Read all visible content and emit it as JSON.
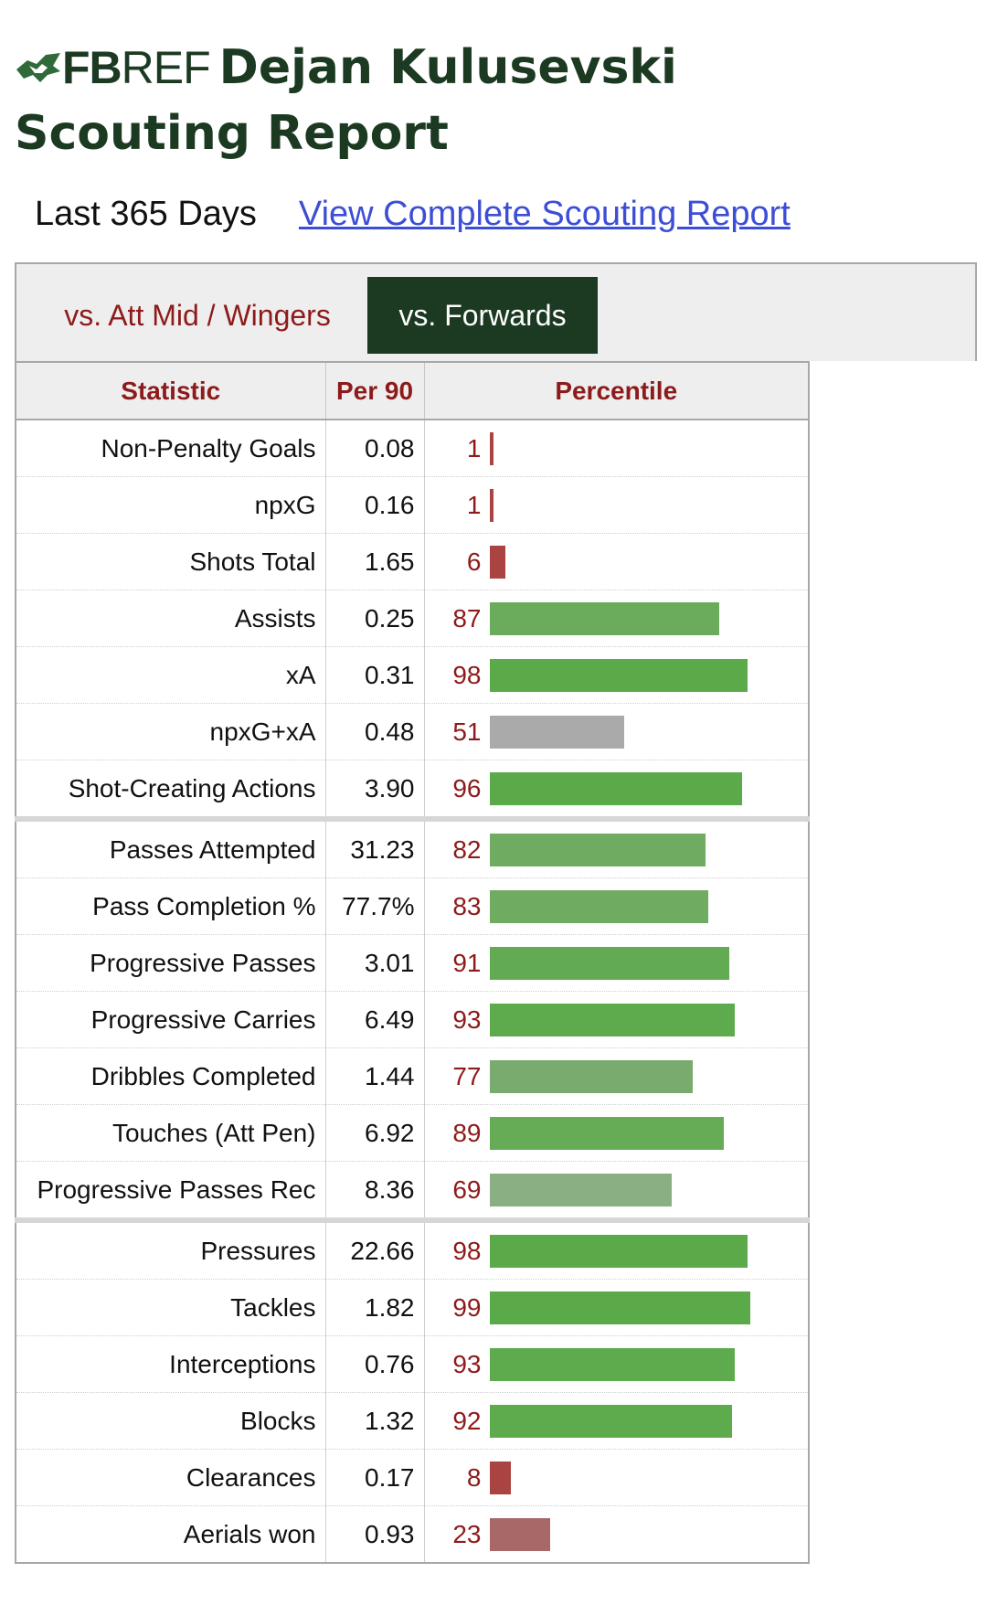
{
  "header": {
    "logo_text": "FBREF",
    "logo_text_bold": "FB",
    "logo_text_light": "REF",
    "player_name": "Dejan Kulusevski",
    "subtitle": "Scouting Report"
  },
  "period_label": "Last 365 Days",
  "report_link": "View Complete Scouting Report",
  "tabs": [
    {
      "label": "vs. Att Mid / Wingers",
      "active": false
    },
    {
      "label": "vs. Forwards",
      "active": true
    }
  ],
  "table": {
    "columns": [
      "Statistic",
      "Per 90",
      "Percentile"
    ],
    "rows": [
      {
        "stat": "Non-Penalty Goals",
        "per90": "0.08",
        "percentile": 1,
        "color": "#a94442",
        "group_start": false
      },
      {
        "stat": "npxG",
        "per90": "0.16",
        "percentile": 1,
        "color": "#a94442",
        "group_start": false
      },
      {
        "stat": "Shots Total",
        "per90": "1.65",
        "percentile": 6,
        "color": "#a94442",
        "group_start": false
      },
      {
        "stat": "Assists",
        "per90": "0.25",
        "percentile": 87,
        "color": "#6aab5c",
        "group_start": false
      },
      {
        "stat": "xA",
        "per90": "0.31",
        "percentile": 98,
        "color": "#5aaa4a",
        "group_start": false
      },
      {
        "stat": "npxG+xA",
        "per90": "0.48",
        "percentile": 51,
        "color": "#aaaaaa",
        "group_start": false
      },
      {
        "stat": "Shot-Creating Actions",
        "per90": "3.90",
        "percentile": 96,
        "color": "#5aaa4a",
        "group_start": false
      },
      {
        "stat": "Passes Attempted",
        "per90": "31.23",
        "percentile": 82,
        "color": "#70ab62",
        "group_start": true
      },
      {
        "stat": "Pass Completion %",
        "per90": "77.7%",
        "percentile": 83,
        "color": "#70ab62",
        "group_start": false
      },
      {
        "stat": "Progressive Passes",
        "per90": "3.01",
        "percentile": 91,
        "color": "#62ab52",
        "group_start": false
      },
      {
        "stat": "Progressive Carries",
        "per90": "6.49",
        "percentile": 93,
        "color": "#5eab4e",
        "group_start": false
      },
      {
        "stat": "Dribbles Completed",
        "per90": "1.44",
        "percentile": 77,
        "color": "#7aab6e",
        "group_start": false
      },
      {
        "stat": "Touches (Att Pen)",
        "per90": "6.92",
        "percentile": 89,
        "color": "#66ab56",
        "group_start": false
      },
      {
        "stat": "Progressive Passes Rec",
        "per90": "8.36",
        "percentile": 69,
        "color": "#8aaf82",
        "group_start": false
      },
      {
        "stat": "Pressures",
        "per90": "22.66",
        "percentile": 98,
        "color": "#5aaa4a",
        "group_start": true
      },
      {
        "stat": "Tackles",
        "per90": "1.82",
        "percentile": 99,
        "color": "#5aaa4a",
        "group_start": false
      },
      {
        "stat": "Interceptions",
        "per90": "0.76",
        "percentile": 93,
        "color": "#5eab4e",
        "group_start": false
      },
      {
        "stat": "Blocks",
        "per90": "1.32",
        "percentile": 92,
        "color": "#5eab4e",
        "group_start": false
      },
      {
        "stat": "Clearances",
        "per90": "0.17",
        "percentile": 8,
        "color": "#a94442",
        "group_start": false
      },
      {
        "stat": "Aerials won",
        "per90": "0.93",
        "percentile": 23,
        "color": "#a86868",
        "group_start": false
      }
    ]
  },
  "colors": {
    "brand_green": "#1c3a22",
    "header_red": "#8e1b1b",
    "link_blue": "#3d4ed6"
  }
}
